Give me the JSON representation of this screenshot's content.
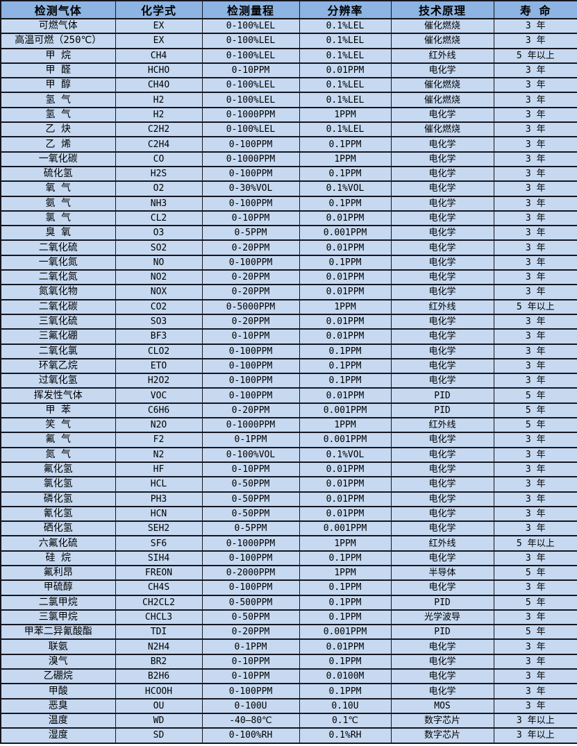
{
  "colors": {
    "header_bg": "#8db4e2",
    "row_bg": "#c6d9f1",
    "border": "#15151f",
    "text": "#000000"
  },
  "table": {
    "headers": [
      "检测气体",
      "化学式",
      "检测量程",
      "分辨率",
      "技术原理",
      "寿 命"
    ],
    "column_keys": [
      "gas-name",
      "formula",
      "range",
      "resolution",
      "principle",
      "lifespan"
    ],
    "rows": [
      [
        "可燃气体",
        "EX",
        "0-100%LEL",
        "0.1%LEL",
        "催化燃烧",
        "3 年"
      ],
      [
        "高温可燃（250℃）",
        "EX",
        "0-100%LEL",
        "0.1%LEL",
        "催化燃烧",
        "3 年"
      ],
      [
        "甲 烷",
        "CH4",
        "0-100%LEL",
        "0.1%LEL",
        "红外线",
        "5 年以上"
      ],
      [
        "甲 醛",
        "HCHO",
        "0-10PPM",
        "0.01PPM",
        "电化学",
        "3 年"
      ],
      [
        "甲 醇",
        "CH4O",
        "0-100%LEL",
        "0.1%LEL",
        "催化燃烧",
        "3 年"
      ],
      [
        "氢 气",
        "H2",
        "0-100%LEL",
        "0.1%LEL",
        "催化燃烧",
        "3 年"
      ],
      [
        "氢 气",
        "H2",
        "0-1000PPM",
        "1PPM",
        "电化学",
        "3 年"
      ],
      [
        "乙 炔",
        "C2H2",
        "0-100%LEL",
        "0.1%LEL",
        "催化燃烧",
        "3 年"
      ],
      [
        "乙 烯",
        "C2H4",
        "0-100PPM",
        "0.1PPM",
        "电化学",
        "3 年"
      ],
      [
        "一氧化碳",
        "CO",
        "0-1000PPM",
        "1PPM",
        "电化学",
        "3 年"
      ],
      [
        "硫化氢",
        "H2S",
        "0-100PPM",
        "0.1PPM",
        "电化学",
        "3 年"
      ],
      [
        "氧 气",
        "O2",
        "0-30%VOL",
        "0.1%VOL",
        "电化学",
        "3 年"
      ],
      [
        "氨 气",
        "NH3",
        "0-100PPM",
        "0.1PPM",
        "电化学",
        "3 年"
      ],
      [
        "氯 气",
        "CL2",
        "0-10PPM",
        "0.01PPM",
        "电化学",
        "3 年"
      ],
      [
        "臭 氧",
        "O3",
        "0-5PPM",
        "0.001PPM",
        "电化学",
        "3 年"
      ],
      [
        "二氧化硫",
        "SO2",
        "0-20PPM",
        "0.01PPM",
        "电化学",
        "3 年"
      ],
      [
        "一氧化氮",
        "NO",
        "0-100PPM",
        "0.1PPM",
        "电化学",
        "3 年"
      ],
      [
        "二氧化氮",
        "NO2",
        "0-20PPM",
        "0.01PPM",
        "电化学",
        "3 年"
      ],
      [
        "氮氧化物",
        "NOX",
        "0-20PPM",
        "0.01PPM",
        "电化学",
        "3 年"
      ],
      [
        "二氧化碳",
        "CO2",
        "0-5000PPM",
        "1PPM",
        "红外线",
        "5 年以上"
      ],
      [
        "三氧化硫",
        "SO3",
        "0-20PPM",
        "0.01PPM",
        "电化学",
        "3 年"
      ],
      [
        "三氟化硼",
        "BF3",
        "0-10PPM",
        "0.01PPM",
        "电化学",
        "3 年"
      ],
      [
        "二氧化氯",
        "CLO2",
        "0-100PPM",
        "0.1PPM",
        "电化学",
        "3 年"
      ],
      [
        "环氧乙烷",
        "ETO",
        "0-100PPM",
        "0.1PPM",
        "电化学",
        "3 年"
      ],
      [
        "过氧化氢",
        "H2O2",
        "0-100PPM",
        "0.1PPM",
        "电化学",
        "3 年"
      ],
      [
        "挥发性气体",
        "VOC",
        "0-100PPM",
        "0.01PPM",
        "PID",
        "5 年"
      ],
      [
        "甲 苯",
        "C6H6",
        "0-20PPM",
        "0.001PPM",
        "PID",
        "5 年"
      ],
      [
        "笑 气",
        "N2O",
        "0-1000PPM",
        "1PPM",
        "红外线",
        "5 年"
      ],
      [
        "氟 气",
        "F2",
        "0-1PPM",
        "0.001PPM",
        "电化学",
        "3 年"
      ],
      [
        "氮 气",
        "N2",
        "0-100%VOL",
        "0.1%VOL",
        "电化学",
        "3 年"
      ],
      [
        "氟化氢",
        "HF",
        "0-10PPM",
        "0.01PPM",
        "电化学",
        "3 年"
      ],
      [
        "氯化氢",
        "HCL",
        "0-50PPM",
        "0.01PPM",
        "电化学",
        "3 年"
      ],
      [
        "磷化氢",
        "PH3",
        "0-50PPM",
        "0.01PPM",
        "电化学",
        "3 年"
      ],
      [
        "氰化氢",
        "HCN",
        "0-50PPM",
        "0.01PPM",
        "电化学",
        "3 年"
      ],
      [
        "硒化氢",
        "SEH2",
        "0-5PPM",
        "0.001PPM",
        "电化学",
        "3 年"
      ],
      [
        "六氟化硫",
        "SF6",
        "0-1000PPM",
        "1PPM",
        "红外线",
        "5 年以上"
      ],
      [
        "硅 烷",
        "SIH4",
        "0-100PPM",
        "0.1PPM",
        "电化学",
        "3 年"
      ],
      [
        "氟利昂",
        "FREON",
        "0-2000PPM",
        "1PPM",
        "半导体",
        "5 年"
      ],
      [
        "甲硫醇",
        "CH4S",
        "0-100PPM",
        "0.1PPM",
        "电化学",
        "3 年"
      ],
      [
        "二氯甲烷",
        "CH2CL2",
        "0-500PPM",
        "0.1PPM",
        "PID",
        "5 年"
      ],
      [
        "三氯甲烷",
        "CHCL3",
        "0-50PPM",
        "0.1PPM",
        "光学波导",
        "3 年"
      ],
      [
        "甲苯二异氰酸酯",
        "TDI",
        "0-20PPM",
        "0.001PPM",
        "PID",
        "5 年"
      ],
      [
        "联氨",
        "N2H4",
        "0-1PPM",
        "0.01PPM",
        "电化学",
        "3 年"
      ],
      [
        "溴气",
        "BR2",
        "0-10PPM",
        "0.1PPM",
        "电化学",
        "3 年"
      ],
      [
        "乙硼烷",
        "B2H6",
        "0-10PPM",
        "0.0100M",
        "电化学",
        "3 年"
      ],
      [
        "甲酸",
        "HCOOH",
        "0-100PPM",
        "0.1PPM",
        "电化学",
        "3 年"
      ],
      [
        "恶臭",
        "OU",
        "0-100U",
        "0.10U",
        "MOS",
        "3 年"
      ],
      [
        "温度",
        "WD",
        "-40—80℃",
        "0.1℃",
        "数字芯片",
        "3 年以上"
      ],
      [
        "湿度",
        "SD",
        "0-100%RH",
        "0.1%RH",
        "数字芯片",
        "3 年以上"
      ]
    ]
  }
}
